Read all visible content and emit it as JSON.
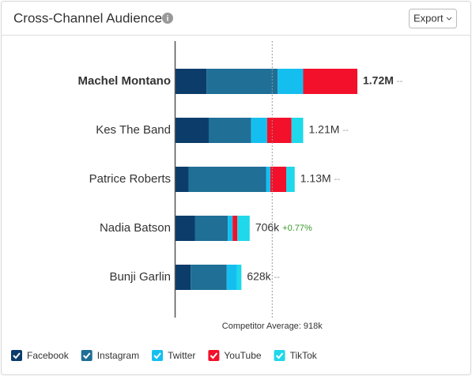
{
  "chart_data": {
    "type": "stacked-bar",
    "title": "Cross-Channel Audience",
    "export_button": "Export",
    "categories": [
      "Machel Montano",
      "Kes The Band",
      "Patrice Roberts",
      "Nadia Batson",
      "Bunji Garlin"
    ],
    "series": [
      {
        "name": "Facebook",
        "color": "#0b3c6a",
        "values": [
          300000,
          320000,
          130000,
          190000,
          150000
        ]
      },
      {
        "name": "Instagram",
        "color": "#1f6f96",
        "values": [
          670000,
          400000,
          730000,
          310000,
          340000
        ]
      },
      {
        "name": "Twitter",
        "color": "#14bff0",
        "values": [
          240000,
          150000,
          40000,
          45000,
          95000
        ]
      },
      {
        "name": "YouTube",
        "color": "#f2102a",
        "values": [
          510000,
          230000,
          150000,
          45000,
          0
        ]
      },
      {
        "name": "TikTok",
        "color": "#1fd8ea",
        "values": [
          0,
          110000,
          80000,
          116000,
          43000
        ]
      }
    ],
    "totals": [
      1720000,
      1210000,
      1130000,
      706000,
      628000
    ],
    "total_labels": [
      "1.72M",
      "1.21M",
      "1.13M",
      "706k",
      "628k"
    ],
    "changes": [
      null,
      null,
      null,
      0.77,
      null
    ],
    "change_labels": [
      "--",
      "--",
      "--",
      "+0.77%",
      "--"
    ],
    "reference": {
      "value": 918000,
      "label": "Competitor Average: 918k"
    },
    "xlim": [
      0,
      2000000
    ]
  }
}
